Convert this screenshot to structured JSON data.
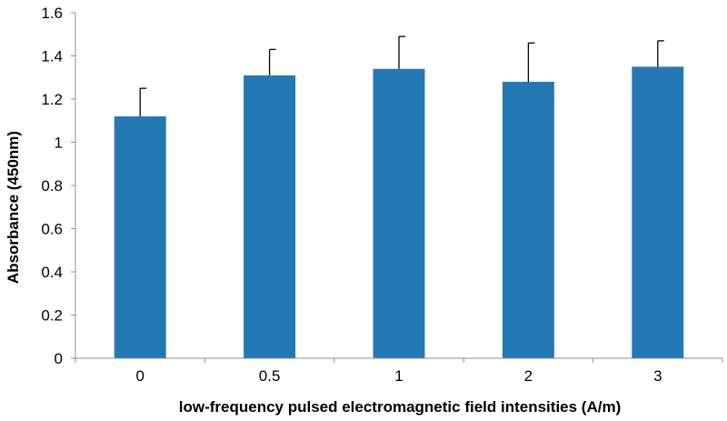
{
  "chart_data": {
    "type": "bar",
    "categories": [
      "0",
      "0.5",
      "1",
      "2",
      "3"
    ],
    "values": [
      1.12,
      1.31,
      1.34,
      1.28,
      1.35
    ],
    "error_upper": [
      0.13,
      0.12,
      0.15,
      0.18,
      0.12
    ],
    "xlabel": "low-frequency pulsed electromagnetic field intensities  (A/m)",
    "ylabel": "Absorbance (450nm)",
    "ylim": [
      0,
      1.6
    ],
    "yticks": [
      "0",
      "0.2",
      "0.4",
      "0.6",
      "0.8",
      "1",
      "1.2",
      "1.4",
      "1.6"
    ],
    "bar_color": "#2478b4",
    "grid": false,
    "legend": "none"
  }
}
